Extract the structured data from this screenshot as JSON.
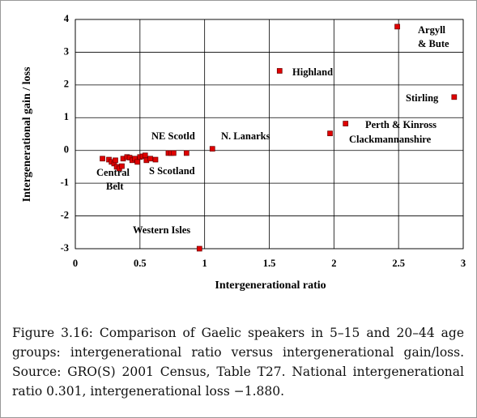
{
  "chart_data": {
    "type": "scatter",
    "xlabel": "Intergenerational ratio",
    "ylabel": "Intergenerational gain / loss",
    "x": [
      2.49,
      1.58,
      2.93,
      2.09,
      1.97,
      1.06,
      0.96,
      0.72,
      0.74,
      0.76,
      0.86,
      0.21,
      0.26,
      0.28,
      0.3,
      0.31,
      0.32,
      0.34,
      0.36,
      0.37,
      0.4,
      0.42,
      0.44,
      0.46,
      0.48,
      0.5,
      0.52,
      0.54,
      0.55,
      0.58,
      0.62
    ],
    "values": [
      3.78,
      2.43,
      1.63,
      0.82,
      0.52,
      0.05,
      -3.0,
      -0.08,
      -0.08,
      -0.08,
      -0.08,
      -0.25,
      -0.28,
      -0.35,
      -0.4,
      -0.3,
      -0.5,
      -0.55,
      -0.48,
      -0.25,
      -0.2,
      -0.22,
      -0.3,
      -0.25,
      -0.35,
      -0.2,
      -0.18,
      -0.15,
      -0.3,
      -0.25,
      -0.28
    ],
    "color": "#e00000",
    "xlim": [
      0,
      3
    ],
    "xticks": [
      0,
      0.5,
      1,
      1.5,
      2,
      2.5,
      3
    ],
    "ylim": [
      -3,
      4
    ],
    "yticks": [
      -3,
      -2,
      -1,
      0,
      1,
      2,
      3,
      4
    ],
    "grid": true,
    "annotations": [
      "Argyll",
      "& Bute",
      "Highland",
      "Stirling",
      "Perth & Kinross",
      "Clackmannanshire",
      "N. Lanarks",
      "NE Scotld",
      "S Scotland",
      "Central",
      "Belt",
      "Western Isles"
    ]
  },
  "caption": "Figure 3.16:  Comparison of Gaelic speakers in 5–15 and 20–44 age groups: intergenerational ratio versus intergenerational gain/loss. Source: GRO(S) 2001 Census, Table T27. National intergenerational ratio 0.301, intergenerational loss −1.880."
}
